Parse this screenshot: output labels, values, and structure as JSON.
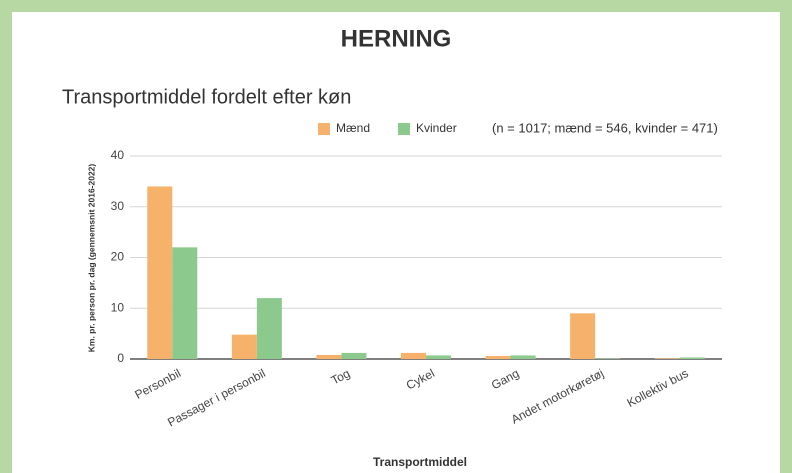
{
  "chart_data": {
    "type": "bar",
    "header": "HERNING",
    "title": "Transportmiddel fordelt efter køn",
    "annotation": "(n = 1017; mænd = 546, kvinder = 471)",
    "x_label": "Transportmiddel",
    "y_label": "Km. pr. person pr. dag (gennemsnit 2016-2022)",
    "categories": [
      "Personbil",
      "Passager i personbil",
      "Tog",
      "Cykel",
      "Gang",
      "Andet motorkøretøj",
      "Kollektiv bus"
    ],
    "series": [
      {
        "name": "Mænd",
        "color": "#f6b26b",
        "values": [
          34,
          4.8,
          0.8,
          1.2,
          0.6,
          9,
          0.1
        ]
      },
      {
        "name": "Kvinder",
        "color": "#8cc98c",
        "values": [
          22,
          12,
          1.2,
          0.7,
          0.7,
          0.1,
          0.3
        ]
      }
    ],
    "ylim": [
      0,
      40
    ],
    "yticks": [
      0,
      10,
      20,
      30,
      40
    ],
    "grid": true,
    "legend": "top"
  }
}
